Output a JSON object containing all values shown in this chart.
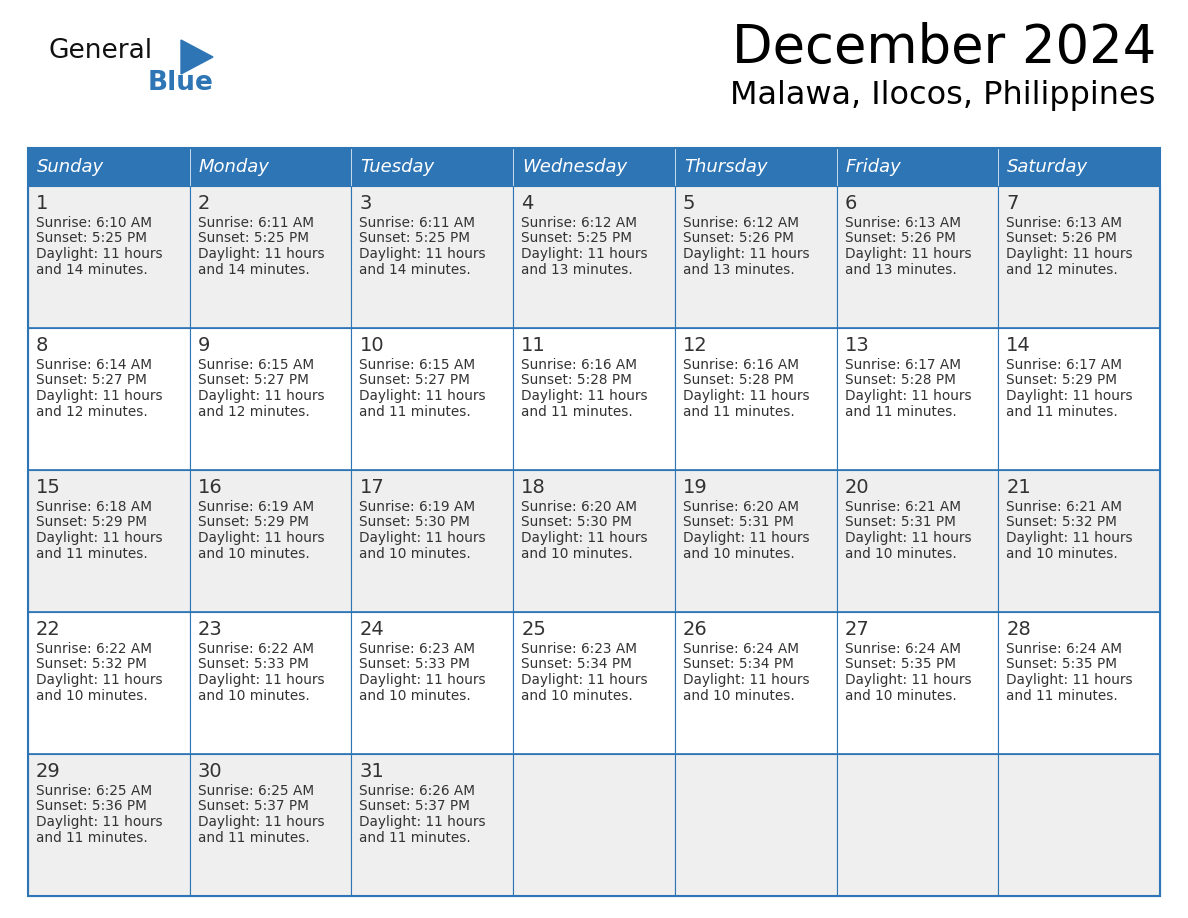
{
  "title": "December 2024",
  "subtitle": "Malawa, Ilocos, Philippines",
  "days_of_week": [
    "Sunday",
    "Monday",
    "Tuesday",
    "Wednesday",
    "Thursday",
    "Friday",
    "Saturday"
  ],
  "header_color": "#2E75B6",
  "header_text_color": "#FFFFFF",
  "cell_bg": "#EFEFEF",
  "cell_bg_alt": "#FFFFFF",
  "border_color": "#2E75B6",
  "day_num_color": "#333333",
  "text_color": "#333333",
  "calendar_data": [
    [
      {
        "day": 1,
        "sunrise": "6:10 AM",
        "sunset": "5:25 PM",
        "daylight_h": "11 hours",
        "daylight_m": "14 minutes."
      },
      {
        "day": 2,
        "sunrise": "6:11 AM",
        "sunset": "5:25 PM",
        "daylight_h": "11 hours",
        "daylight_m": "14 minutes."
      },
      {
        "day": 3,
        "sunrise": "6:11 AM",
        "sunset": "5:25 PM",
        "daylight_h": "11 hours",
        "daylight_m": "14 minutes."
      },
      {
        "day": 4,
        "sunrise": "6:12 AM",
        "sunset": "5:25 PM",
        "daylight_h": "11 hours",
        "daylight_m": "13 minutes."
      },
      {
        "day": 5,
        "sunrise": "6:12 AM",
        "sunset": "5:26 PM",
        "daylight_h": "11 hours",
        "daylight_m": "13 minutes."
      },
      {
        "day": 6,
        "sunrise": "6:13 AM",
        "sunset": "5:26 PM",
        "daylight_h": "11 hours",
        "daylight_m": "13 minutes."
      },
      {
        "day": 7,
        "sunrise": "6:13 AM",
        "sunset": "5:26 PM",
        "daylight_h": "11 hours",
        "daylight_m": "12 minutes."
      }
    ],
    [
      {
        "day": 8,
        "sunrise": "6:14 AM",
        "sunset": "5:27 PM",
        "daylight_h": "11 hours",
        "daylight_m": "12 minutes."
      },
      {
        "day": 9,
        "sunrise": "6:15 AM",
        "sunset": "5:27 PM",
        "daylight_h": "11 hours",
        "daylight_m": "12 minutes."
      },
      {
        "day": 10,
        "sunrise": "6:15 AM",
        "sunset": "5:27 PM",
        "daylight_h": "11 hours",
        "daylight_m": "11 minutes."
      },
      {
        "day": 11,
        "sunrise": "6:16 AM",
        "sunset": "5:28 PM",
        "daylight_h": "11 hours",
        "daylight_m": "11 minutes."
      },
      {
        "day": 12,
        "sunrise": "6:16 AM",
        "sunset": "5:28 PM",
        "daylight_h": "11 hours",
        "daylight_m": "11 minutes."
      },
      {
        "day": 13,
        "sunrise": "6:17 AM",
        "sunset": "5:28 PM",
        "daylight_h": "11 hours",
        "daylight_m": "11 minutes."
      },
      {
        "day": 14,
        "sunrise": "6:17 AM",
        "sunset": "5:29 PM",
        "daylight_h": "11 hours",
        "daylight_m": "11 minutes."
      }
    ],
    [
      {
        "day": 15,
        "sunrise": "6:18 AM",
        "sunset": "5:29 PM",
        "daylight_h": "11 hours",
        "daylight_m": "11 minutes."
      },
      {
        "day": 16,
        "sunrise": "6:19 AM",
        "sunset": "5:29 PM",
        "daylight_h": "11 hours",
        "daylight_m": "10 minutes."
      },
      {
        "day": 17,
        "sunrise": "6:19 AM",
        "sunset": "5:30 PM",
        "daylight_h": "11 hours",
        "daylight_m": "10 minutes."
      },
      {
        "day": 18,
        "sunrise": "6:20 AM",
        "sunset": "5:30 PM",
        "daylight_h": "11 hours",
        "daylight_m": "10 minutes."
      },
      {
        "day": 19,
        "sunrise": "6:20 AM",
        "sunset": "5:31 PM",
        "daylight_h": "11 hours",
        "daylight_m": "10 minutes."
      },
      {
        "day": 20,
        "sunrise": "6:21 AM",
        "sunset": "5:31 PM",
        "daylight_h": "11 hours",
        "daylight_m": "10 minutes."
      },
      {
        "day": 21,
        "sunrise": "6:21 AM",
        "sunset": "5:32 PM",
        "daylight_h": "11 hours",
        "daylight_m": "10 minutes."
      }
    ],
    [
      {
        "day": 22,
        "sunrise": "6:22 AM",
        "sunset": "5:32 PM",
        "daylight_h": "11 hours",
        "daylight_m": "10 minutes."
      },
      {
        "day": 23,
        "sunrise": "6:22 AM",
        "sunset": "5:33 PM",
        "daylight_h": "11 hours",
        "daylight_m": "10 minutes."
      },
      {
        "day": 24,
        "sunrise": "6:23 AM",
        "sunset": "5:33 PM",
        "daylight_h": "11 hours",
        "daylight_m": "10 minutes."
      },
      {
        "day": 25,
        "sunrise": "6:23 AM",
        "sunset": "5:34 PM",
        "daylight_h": "11 hours",
        "daylight_m": "10 minutes."
      },
      {
        "day": 26,
        "sunrise": "6:24 AM",
        "sunset": "5:34 PM",
        "daylight_h": "11 hours",
        "daylight_m": "10 minutes."
      },
      {
        "day": 27,
        "sunrise": "6:24 AM",
        "sunset": "5:35 PM",
        "daylight_h": "11 hours",
        "daylight_m": "10 minutes."
      },
      {
        "day": 28,
        "sunrise": "6:24 AM",
        "sunset": "5:35 PM",
        "daylight_h": "11 hours",
        "daylight_m": "11 minutes."
      }
    ],
    [
      {
        "day": 29,
        "sunrise": "6:25 AM",
        "sunset": "5:36 PM",
        "daylight_h": "11 hours",
        "daylight_m": "11 minutes."
      },
      {
        "day": 30,
        "sunrise": "6:25 AM",
        "sunset": "5:37 PM",
        "daylight_h": "11 hours",
        "daylight_m": "11 minutes."
      },
      {
        "day": 31,
        "sunrise": "6:26 AM",
        "sunset": "5:37 PM",
        "daylight_h": "11 hours",
        "daylight_m": "11 minutes."
      },
      null,
      null,
      null,
      null
    ]
  ],
  "logo_general_color": "#111111",
  "logo_blue_color": "#2E75B6",
  "fig_width": 11.88,
  "fig_height": 9.18,
  "dpi": 100
}
